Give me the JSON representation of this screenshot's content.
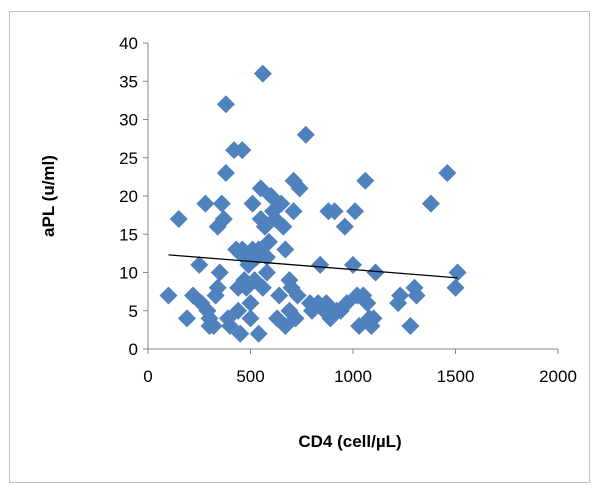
{
  "chart_data": {
    "type": "scatter",
    "title": "",
    "xlabel": "CD4 (cell/µL)",
    "ylabel": "aPL (u/ml)",
    "xlim": [
      0,
      2000
    ],
    "ylim": [
      0,
      40
    ],
    "x_ticks": [
      0,
      500,
      1000,
      1500,
      2000
    ],
    "y_ticks": [
      0,
      5,
      10,
      15,
      20,
      25,
      30,
      35,
      40
    ],
    "grid": false,
    "legend": "none",
    "marker": "diamond",
    "marker_color": "#4f81bd",
    "trendline": {
      "type": "linear",
      "x": [
        100,
        1510
      ],
      "y": [
        12.3,
        9.3
      ],
      "color": "#000000"
    },
    "series": [
      {
        "points": [
          [
            100,
            7
          ],
          [
            150,
            17
          ],
          [
            190,
            4
          ],
          [
            220,
            7
          ],
          [
            250,
            11
          ],
          [
            260,
            6
          ],
          [
            280,
            19
          ],
          [
            290,
            5
          ],
          [
            300,
            4
          ],
          [
            300,
            3
          ],
          [
            320,
            3
          ],
          [
            330,
            7
          ],
          [
            340,
            8
          ],
          [
            340,
            16
          ],
          [
            350,
            10
          ],
          [
            360,
            19
          ],
          [
            370,
            17
          ],
          [
            380,
            32
          ],
          [
            380,
            23
          ],
          [
            390,
            4
          ],
          [
            400,
            3
          ],
          [
            420,
            26
          ],
          [
            430,
            13
          ],
          [
            440,
            8
          ],
          [
            440,
            5
          ],
          [
            450,
            2
          ],
          [
            460,
            26
          ],
          [
            460,
            13
          ],
          [
            470,
            9
          ],
          [
            470,
            12
          ],
          [
            480,
            8
          ],
          [
            490,
            11
          ],
          [
            500,
            6
          ],
          [
            500,
            4
          ],
          [
            510,
            13
          ],
          [
            510,
            19
          ],
          [
            520,
            9
          ],
          [
            530,
            12
          ],
          [
            540,
            2
          ],
          [
            540,
            13
          ],
          [
            550,
            17
          ],
          [
            550,
            21
          ],
          [
            560,
            36
          ],
          [
            560,
            8
          ],
          [
            570,
            16
          ],
          [
            580,
            10
          ],
          [
            580,
            12
          ],
          [
            590,
            14
          ],
          [
            600,
            20
          ],
          [
            610,
            18
          ],
          [
            620,
            17
          ],
          [
            630,
            4
          ],
          [
            640,
            7
          ],
          [
            650,
            19
          ],
          [
            660,
            16
          ],
          [
            670,
            13
          ],
          [
            670,
            3
          ],
          [
            690,
            9
          ],
          [
            690,
            5
          ],
          [
            700,
            8
          ],
          [
            710,
            22
          ],
          [
            710,
            18
          ],
          [
            720,
            4
          ],
          [
            730,
            7
          ],
          [
            740,
            21
          ],
          [
            770,
            28
          ],
          [
            790,
            6
          ],
          [
            800,
            5
          ],
          [
            830,
            6
          ],
          [
            840,
            11
          ],
          [
            860,
            5
          ],
          [
            870,
            6
          ],
          [
            880,
            18
          ],
          [
            890,
            4
          ],
          [
            910,
            18
          ],
          [
            920,
            5
          ],
          [
            940,
            5
          ],
          [
            960,
            16
          ],
          [
            970,
            6
          ],
          [
            1000,
            11
          ],
          [
            1010,
            18
          ],
          [
            1020,
            7
          ],
          [
            1030,
            3
          ],
          [
            1050,
            7
          ],
          [
            1060,
            22
          ],
          [
            1070,
            6
          ],
          [
            1080,
            4
          ],
          [
            1090,
            3
          ],
          [
            1100,
            4
          ],
          [
            1110,
            10
          ],
          [
            1220,
            6
          ],
          [
            1230,
            7
          ],
          [
            1280,
            3
          ],
          [
            1300,
            8
          ],
          [
            1310,
            7
          ],
          [
            1380,
            19
          ],
          [
            1460,
            23
          ],
          [
            1500,
            8
          ],
          [
            1510,
            10
          ]
        ]
      }
    ]
  }
}
